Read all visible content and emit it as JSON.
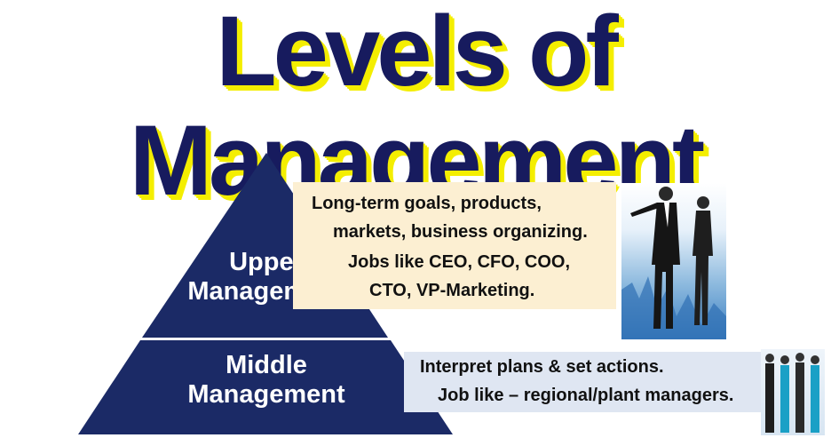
{
  "title": "Levels of Management",
  "pyramid": {
    "upper_line1": "Upper",
    "upper_line2": "Management",
    "middle_line1": "Middle",
    "middle_line2": "Management"
  },
  "upper_box": {
    "line1": "Long-term goals, products,",
    "line2": "markets, business organizing.",
    "line3": "Jobs like CEO, CFO, COO,",
    "line4": "CTO, VP-Marketing."
  },
  "middle_box": {
    "line1": "Interpret plans & set actions.",
    "line2": "Job like – regional/plant managers."
  },
  "colors": {
    "title": "#171b5e",
    "title_shadow": "#f4ee00",
    "pyramid": "#1b2a66",
    "upper_box_bg": "#fcefd2",
    "middle_box_bg": "#dfe6f2"
  },
  "images": {
    "upper": "two-businesspeople-pointing",
    "middle": "four-business-team-members"
  }
}
